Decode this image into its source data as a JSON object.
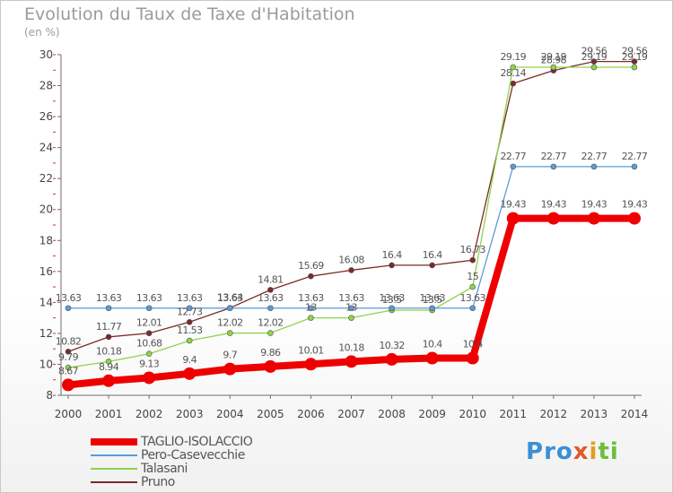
{
  "header": {
    "title": "Evolution du Taux de Taxe d'Habitation",
    "unit": "(en %)"
  },
  "logo": {
    "letters": [
      "P",
      "r",
      "o",
      "x",
      "i",
      "t",
      "i"
    ],
    "colors": [
      "#3a8fd6",
      "#3a8fd6",
      "#3a8fd6",
      "#e05a2a",
      "#e0a020",
      "#6cbf3a",
      "#6cbf3a"
    ]
  },
  "chart_data": {
    "type": "line",
    "x": [
      "2000",
      "2001",
      "2002",
      "2003",
      "2004",
      "2005",
      "2006",
      "2007",
      "2008",
      "2009",
      "2010",
      "2011",
      "2012",
      "2013",
      "2014"
    ],
    "ylim": [
      8,
      30
    ],
    "yticks": [
      8,
      10,
      12,
      14,
      16,
      18,
      20,
      22,
      24,
      26,
      28,
      30
    ],
    "grid": false,
    "legend_position": "bottom-left",
    "series": [
      {
        "name": "TAGLIO-ISOLACCIO",
        "color": "#ee0000",
        "values": [
          8.67,
          8.94,
          9.13,
          9.4,
          9.7,
          9.86,
          10.01,
          10.18,
          10.32,
          10.4,
          10.4,
          19.43,
          19.43,
          19.43,
          19.43
        ],
        "labels": [
          "8.67",
          "8.94",
          "9.13",
          "9.4",
          "9.7",
          "9.86",
          "10.01",
          "10.18",
          "10.32",
          "10.4",
          "10.4",
          "19.43",
          "19.43",
          "19.43",
          "19.43"
        ]
      },
      {
        "name": "Pero-Casevecchie",
        "color": "#5b9bd5",
        "values": [
          13.63,
          13.63,
          13.63,
          13.63,
          13.63,
          13.63,
          13.63,
          13.63,
          13.63,
          13.63,
          13.63,
          22.77,
          22.77,
          22.77,
          22.77
        ],
        "labels": [
          "13.63",
          "13.63",
          "13.63",
          "13.63",
          "13.63",
          "13.63",
          "13.63",
          "13.63",
          "13.63",
          "13.63",
          "13.63",
          "22.77",
          "22.77",
          "22.77",
          "22.77"
        ]
      },
      {
        "name": "Talasani",
        "color": "#8fd34a",
        "values": [
          9.79,
          10.18,
          10.68,
          11.53,
          12.02,
          12.02,
          13,
          13,
          13.5,
          13.5,
          15,
          29.19,
          29.19,
          29.19,
          29.19
        ],
        "labels": [
          "9.79",
          "10.18",
          "10.68",
          "11.53",
          "12.02",
          "12.02",
          "13",
          "13",
          "13.5",
          "13.5",
          "15",
          "29.19",
          "29.19",
          "29.19",
          "29.19"
        ]
      },
      {
        "name": "Pruno",
        "color": "#7b2a2a",
        "values": [
          10.82,
          11.77,
          12.01,
          12.73,
          13.64,
          14.81,
          15.69,
          16.08,
          16.4,
          16.4,
          16.73,
          28.14,
          28.98,
          29.56,
          29.56
        ],
        "labels": [
          "10.82",
          "11.77",
          "12.01",
          "12.73",
          "13.64",
          "14.81",
          "15.69",
          "16.08",
          "16.4",
          "16.4",
          "16.73",
          "28.14",
          "28.98",
          "29.56",
          "29.56"
        ]
      }
    ]
  }
}
